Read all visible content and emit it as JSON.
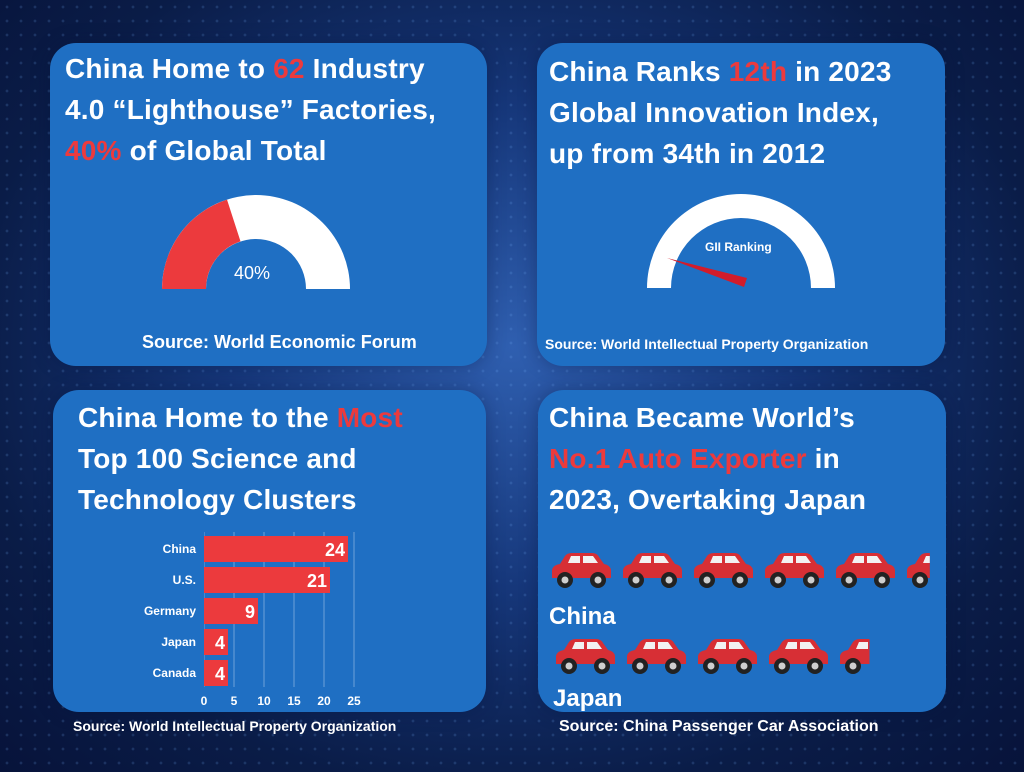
{
  "colors": {
    "accent_red": "#ec3a3d",
    "card_blue": "#1f6fc3",
    "text": "#ffffff"
  },
  "panel1": {
    "title_l1_a": "China Home to ",
    "title_l1_hl": "62",
    "title_l1_b": " Industry",
    "title_l2": "4.0 “Lighthouse” Factories,",
    "title_l3_hl": "40%",
    "title_l3_b": " of Global Total",
    "gauge_label": "40%",
    "gauge_value": 0.4,
    "source": "Source: World Economic Forum"
  },
  "panel2": {
    "title_l1_a": "China Ranks ",
    "title_l1_hl": "12th",
    "title_l1_b": " in 2023",
    "title_l2": "Global Innovation Index,",
    "title_l3": "up from 34th in 2012",
    "gauge_label": "GII Ranking",
    "source": "Source: World Intellectual Property Organization"
  },
  "panel3": {
    "title_l1_a": "China Home to the ",
    "title_l1_hl": "Most",
    "title_l2": "Top 100 Science and",
    "title_l3": "Technology Clusters",
    "source": "Source: World Intellectual Property Organization"
  },
  "panel4": {
    "title_l1": "China Became World’s",
    "title_l2_hl": "No.1 Auto Exporter",
    "title_l2_b": " in",
    "title_l3": "2023, Overtaking Japan",
    "china_label": "China",
    "japan_label": "Japan",
    "china_cars": 5.4,
    "japan_cars": 4.5,
    "source": "Source: China Passenger Car Association"
  },
  "chart_data": {
    "type": "bar",
    "orientation": "horizontal",
    "categories": [
      "China",
      "U.S.",
      "Germany",
      "Japan",
      "Canada"
    ],
    "values": [
      24,
      21,
      9,
      4,
      4
    ],
    "xticks": [
      "0",
      "5",
      "10",
      "15",
      "20",
      "25"
    ],
    "xlim": [
      0,
      25
    ],
    "grid": true,
    "bar_color": "#ec3a3d"
  }
}
